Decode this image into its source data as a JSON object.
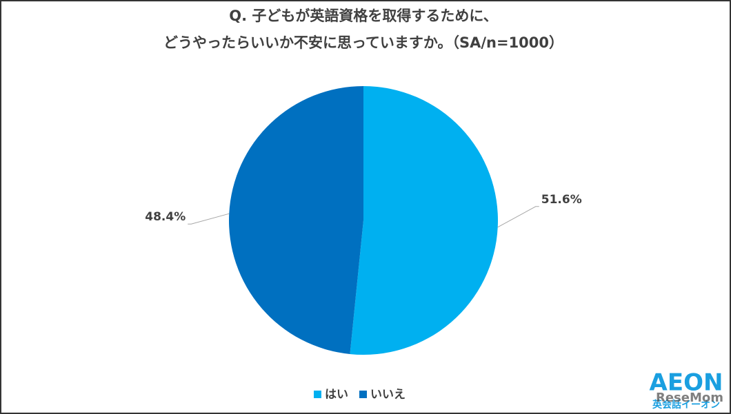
{
  "chart_data": {
    "type": "pie",
    "title": [
      "Q. 子どもが英語資格を取得するために、",
      "どうやったらいいか不安に思っていますか。（SA/n=1000）"
    ],
    "categories": [
      "はい",
      "いいえ"
    ],
    "values": [
      51.6,
      48.4
    ],
    "value_labels": [
      "51.6%",
      "48.4%"
    ],
    "colors": [
      "#00b0f0",
      "#0070c0"
    ],
    "legend": "bottom"
  },
  "logo": {
    "brand": "AEON",
    "tagline": "英会話イーオン"
  },
  "watermark": "ReseMom"
}
